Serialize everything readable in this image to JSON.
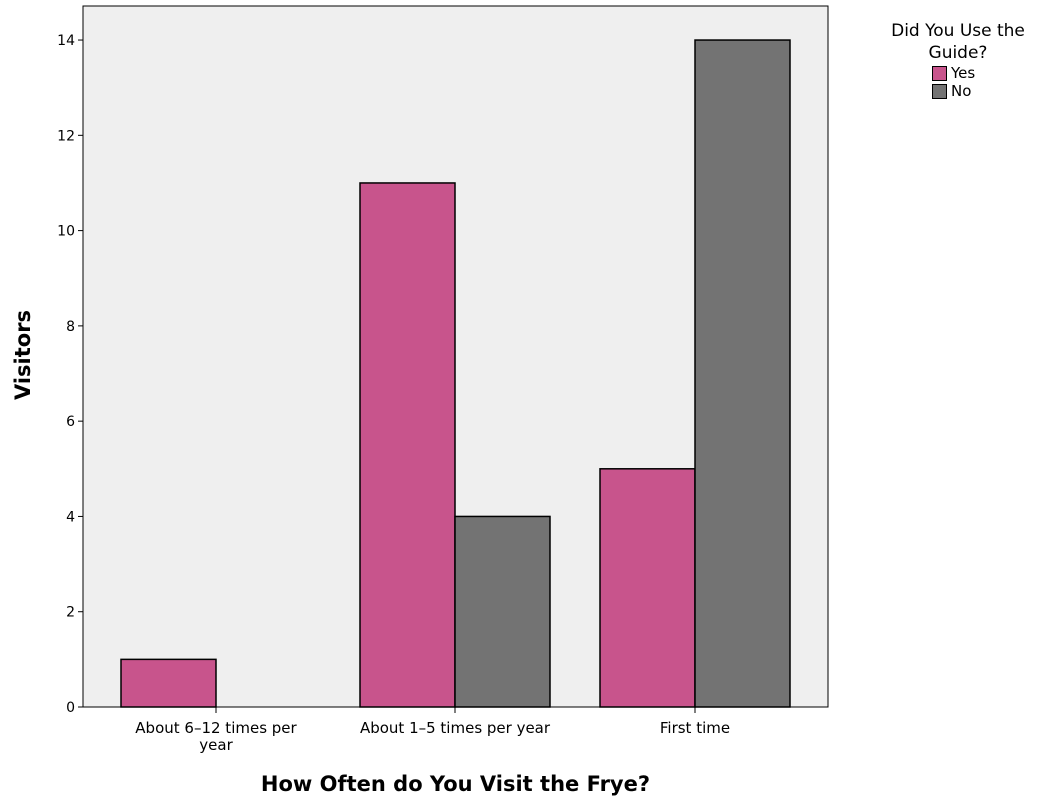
{
  "chart_data": {
    "type": "bar",
    "categories": [
      "About 6–12 times per year",
      "About 1–5 times per year",
      "First time"
    ],
    "series": [
      {
        "name": "Yes",
        "values": [
          1,
          11,
          5
        ],
        "color": "#c8548c"
      },
      {
        "name": "No",
        "values": [
          0,
          4,
          14
        ],
        "color": "#737373"
      }
    ],
    "xlabel": "How Often do You Visit the Frye?",
    "ylabel": "Visitors",
    "ylim": [
      0,
      14.7
    ],
    "yticks": [
      0,
      2,
      4,
      6,
      8,
      10,
      12,
      14
    ],
    "legend": {
      "title": "Did You Use the Guide?",
      "placement": "right"
    },
    "plot_background": "#efefef",
    "grid": false
  }
}
